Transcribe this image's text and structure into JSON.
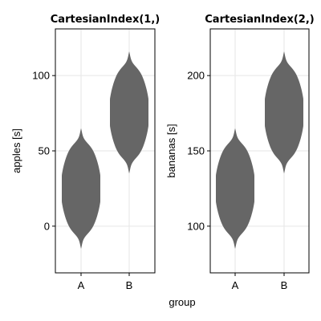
{
  "figure": {
    "xlabel": "group"
  },
  "chart_data": [
    {
      "type": "violin",
      "title": "CartesianIndex(1,)",
      "xlabel": "group",
      "ylabel": "apples [s]",
      "categories": [
        "A",
        "B"
      ],
      "ylim": [
        -31,
        131
      ],
      "yticks": [
        0,
        50,
        100
      ],
      "grid": true,
      "color": "#666666",
      "violins": [
        {
          "category": "A",
          "min": -15,
          "max": 65,
          "center": 25
        },
        {
          "category": "B",
          "min": 35,
          "max": 116,
          "center": 75
        }
      ]
    },
    {
      "type": "violin",
      "title": "CartesianIndex(2,)",
      "xlabel": "group",
      "ylabel": "bananas [s]",
      "categories": [
        "A",
        "B"
      ],
      "ylim": [
        69,
        231
      ],
      "yticks": [
        100,
        150,
        200
      ],
      "grid": true,
      "color": "#666666",
      "violins": [
        {
          "category": "A",
          "min": 85,
          "max": 165,
          "center": 125
        },
        {
          "category": "B",
          "min": 135,
          "max": 216,
          "center": 175
        }
      ]
    }
  ]
}
